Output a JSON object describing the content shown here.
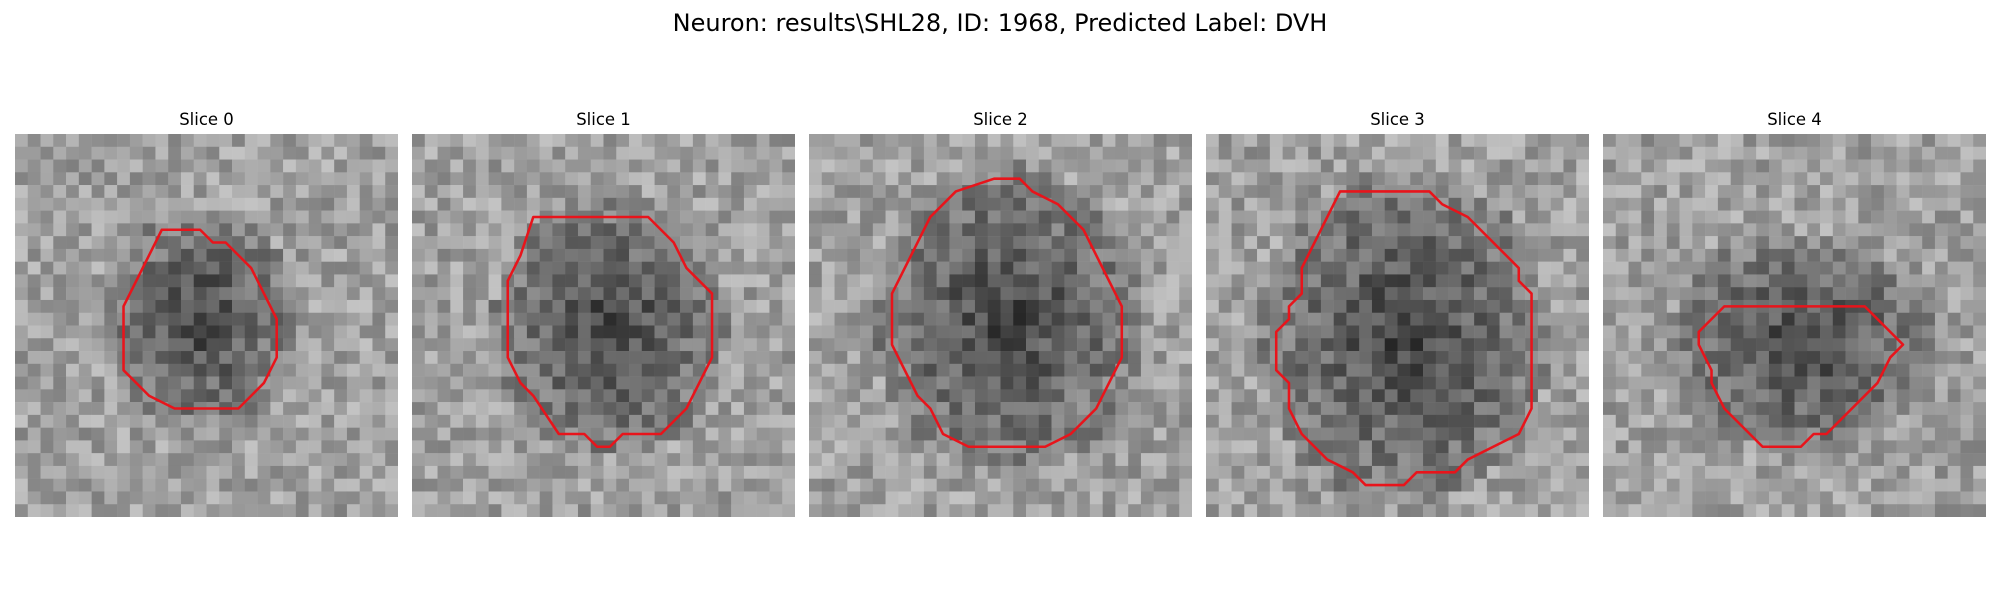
{
  "figure": {
    "title": "Neuron: results\\SHL28, ID: 1968, Predicted Label: DVH"
  },
  "contour_color": "#e8141b",
  "panels": [
    {
      "title": "Slice 0"
    },
    {
      "title": "Slice 1"
    },
    {
      "title": "Slice 2"
    },
    {
      "title": "Slice 3"
    },
    {
      "title": "Slice 4"
    }
  ]
}
